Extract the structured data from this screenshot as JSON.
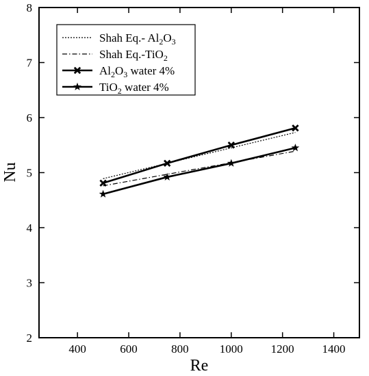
{
  "chart_data": {
    "type": "line",
    "xlabel": "Re",
    "ylabel": "Nu",
    "xlim": [
      250,
      1500
    ],
    "ylim": [
      2,
      8
    ],
    "x_ticks": [
      400,
      600,
      800,
      1000,
      1200,
      1400
    ],
    "x_tick_labels": [
      "400",
      "600",
      "800",
      "1000",
      "1200",
      "1400"
    ],
    "y_ticks": [
      2,
      3,
      4,
      5,
      6,
      7,
      8
    ],
    "y_tick_labels": [
      "2",
      "3",
      "4",
      "5",
      "6",
      "7",
      "8"
    ],
    "grid": false,
    "legend_position": "top-left",
    "series": [
      {
        "name": "Shah Eq.- Al2O3",
        "name_parts": [
          "Shah Eq.- Al",
          "2",
          "O",
          "3",
          ""
        ],
        "style": "dotted",
        "marker": "none",
        "x": [
          500,
          1250
        ],
        "y": [
          4.89,
          5.73
        ]
      },
      {
        "name": "Shah Eq.-TiO2",
        "name_parts": [
          "Shah Eq.-TiO",
          "2",
          "",
          "",
          ""
        ],
        "style": "dashdot",
        "marker": "none",
        "x": [
          500,
          1250
        ],
        "y": [
          4.76,
          5.39
        ]
      },
      {
        "name": "Al2O3 water 4%",
        "name_parts": [
          "Al",
          "2",
          "O",
          "3",
          " water 4%"
        ],
        "style": "solid-thick",
        "marker": "x",
        "x": [
          500,
          750,
          1000,
          1250
        ],
        "y": [
          4.81,
          5.17,
          5.5,
          5.81
        ]
      },
      {
        "name": "TiO2 water 4%",
        "name_parts": [
          "TiO",
          "2",
          " water 4%",
          "",
          ""
        ],
        "style": "solid-thick",
        "marker": "star",
        "x": [
          500,
          750,
          1000,
          1250
        ],
        "y": [
          4.61,
          4.92,
          5.17,
          5.45
        ]
      }
    ]
  }
}
